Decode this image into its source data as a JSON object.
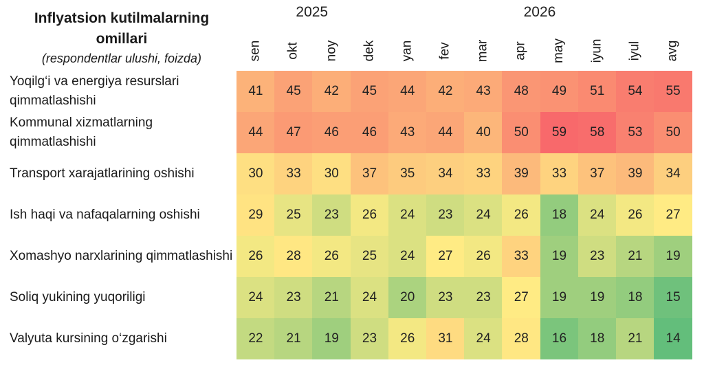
{
  "chart_data": {
    "type": "heatmap",
    "title": "Inflyatsion kutilmalarning omillari",
    "subtitle": "(respondentlar ulushi, foizda)",
    "year_groups": [
      {
        "label": "2025",
        "months": [
          "sen",
          "okt",
          "noy",
          "dek"
        ]
      },
      {
        "label": "2026",
        "months": [
          "yan",
          "fev",
          "mar",
          "apr",
          "may",
          "iyun",
          "iyul",
          "avg"
        ]
      }
    ],
    "columns": [
      "sen",
      "okt",
      "noy",
      "dek",
      "yan",
      "fev",
      "mar",
      "apr",
      "may",
      "iyun",
      "iyul",
      "avg"
    ],
    "rows": [
      {
        "label": "Yoqilg‘i va energiya resurslari qimmatlashishi",
        "values": [
          41,
          45,
          42,
          45,
          44,
          42,
          43,
          48,
          49,
          51,
          54,
          55
        ]
      },
      {
        "label": "Kommunal xizmatlarning qimmatlashishi",
        "values": [
          44,
          47,
          46,
          46,
          43,
          44,
          40,
          50,
          59,
          58,
          53,
          50
        ]
      },
      {
        "label": "Transport xarajatlarining oshishi",
        "values": [
          30,
          33,
          30,
          37,
          35,
          34,
          33,
          39,
          33,
          37,
          39,
          34
        ]
      },
      {
        "label": "Ish haqi va nafaqalarning oshishi",
        "values": [
          29,
          25,
          23,
          26,
          24,
          23,
          24,
          26,
          18,
          24,
          26,
          27
        ]
      },
      {
        "label": "Xomashyo narxlarining qimmatlashishi",
        "values": [
          26,
          28,
          26,
          25,
          24,
          27,
          26,
          33,
          19,
          23,
          21,
          19
        ]
      },
      {
        "label": "Soliq yukining yuqoriligi",
        "values": [
          24,
          23,
          21,
          24,
          20,
          23,
          23,
          27,
          19,
          19,
          18,
          15
        ]
      },
      {
        "label": "Valyuta kursining o‘zgarishi",
        "values": [
          22,
          21,
          19,
          23,
          26,
          31,
          24,
          28,
          16,
          18,
          21,
          14
        ]
      }
    ],
    "color_scale": {
      "low": "#63be7b",
      "mid": "#ffeb84",
      "high": "#f8696b"
    }
  }
}
